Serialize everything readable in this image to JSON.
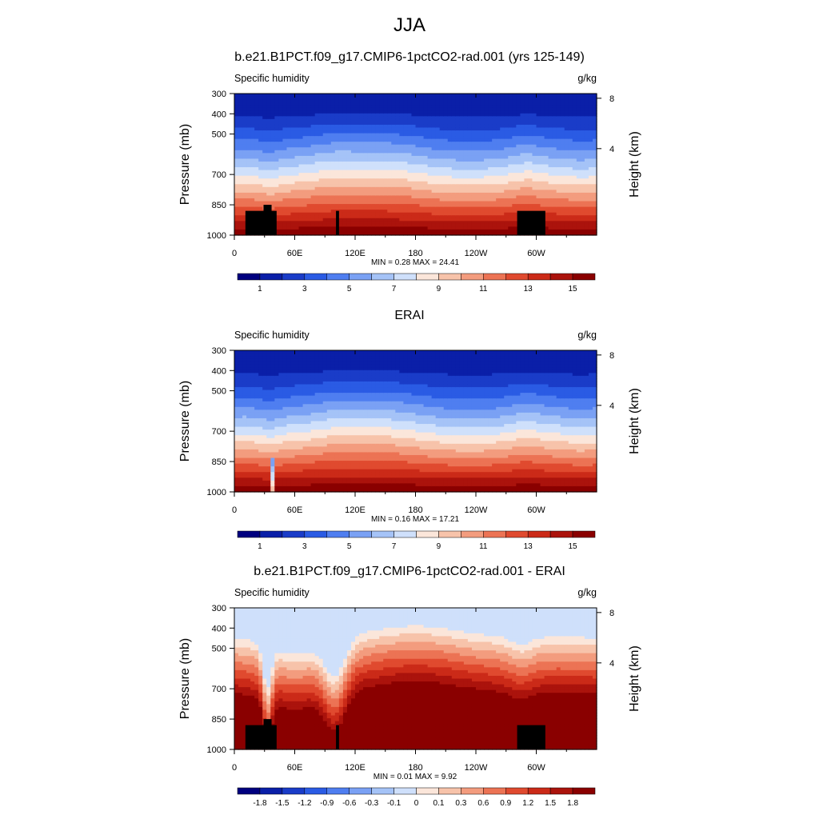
{
  "figure": {
    "title": "JJA"
  },
  "chart_data": [
    {
      "type": "heatmap",
      "title": "b.e21.B1PCT.f09_g17.CMIP6-1pctCO2-rad.001 (yrs 125-149)",
      "left_label": "Specific humidity",
      "right_label": "g/kg",
      "ylabel": "Pressure (mb)",
      "y2label": "Height (km)",
      "y_ticks": [
        "300",
        "400",
        "500",
        "700",
        "850",
        "1000"
      ],
      "y2_ticks": [
        "8",
        "4"
      ],
      "x_ticks": [
        "0",
        "60E",
        "120E",
        "180",
        "120W",
        "60W"
      ],
      "xlim_lon": [
        0,
        360
      ],
      "ylim_pressure": [
        1000,
        300
      ],
      "stats": "MIN =   0.28  MAX =  24.41",
      "colorbar": {
        "labels": [
          "1",
          "3",
          "5",
          "7",
          "9",
          "11",
          "13",
          "15"
        ],
        "levels": [
          1,
          2,
          3,
          4,
          5,
          6,
          7,
          8,
          9,
          10,
          11,
          12,
          13,
          14,
          15
        ]
      },
      "kind": "abs",
      "has_mask": true
    },
    {
      "type": "heatmap",
      "title": "ERAI",
      "left_label": "Specific humidity",
      "right_label": "g/kg",
      "ylabel": "Pressure (mb)",
      "y2label": "Height (km)",
      "y_ticks": [
        "300",
        "400",
        "500",
        "700",
        "850",
        "1000"
      ],
      "y2_ticks": [
        "8",
        "4"
      ],
      "x_ticks": [
        "0",
        "60E",
        "120E",
        "180",
        "120W",
        "60W"
      ],
      "xlim_lon": [
        0,
        360
      ],
      "ylim_pressure": [
        1000,
        300
      ],
      "stats": "MIN =   0.16  MAX =  17.21",
      "colorbar": {
        "labels": [
          "1",
          "3",
          "5",
          "7",
          "9",
          "11",
          "13",
          "15"
        ],
        "levels": [
          1,
          2,
          3,
          4,
          5,
          6,
          7,
          8,
          9,
          10,
          11,
          12,
          13,
          14,
          15
        ]
      },
      "kind": "abs",
      "has_mask": false
    },
    {
      "type": "heatmap",
      "title": "b.e21.B1PCT.f09_g17.CMIP6-1pctCO2-rad.001 - ERAI",
      "left_label": "Specific humidity",
      "right_label": "g/kg",
      "ylabel": "Pressure (mb)",
      "y2label": "Height (km)",
      "y_ticks": [
        "300",
        "400",
        "500",
        "700",
        "850",
        "1000"
      ],
      "y2_ticks": [
        "8",
        "4"
      ],
      "x_ticks": [
        "0",
        "60E",
        "120E",
        "180",
        "120W",
        "60W"
      ],
      "xlim_lon": [
        0,
        360
      ],
      "ylim_pressure": [
        1000,
        300
      ],
      "stats": "MIN =   0.01  MAX =   9.92",
      "colorbar": {
        "labels": [
          "-1.8",
          "-1.5",
          "-1.2",
          "-0.9",
          "-0.6",
          "-0.3",
          "-0.1",
          "0",
          "0.1",
          "0.3",
          "0.6",
          "0.9",
          "1.2",
          "1.5",
          "1.8"
        ],
        "levels": [
          -1.8,
          -1.5,
          -1.2,
          -0.9,
          -0.6,
          -0.3,
          -0.1,
          0,
          0.1,
          0.3,
          0.6,
          0.9,
          1.2,
          1.5,
          1.8
        ]
      },
      "kind": "diff",
      "has_mask": true
    }
  ],
  "colors": {
    "palette16": [
      "#00007f",
      "#0a1fa8",
      "#1a3cc8",
      "#2a5be4",
      "#4f7ef0",
      "#7aa1f4",
      "#a5c3f7",
      "#cfe0fb",
      "#fbe6da",
      "#f7c3aa",
      "#f39c7e",
      "#ec7354",
      "#e04a2f",
      "#cb2a18",
      "#ab130c",
      "#8a0000"
    ],
    "mask": "#000000"
  }
}
